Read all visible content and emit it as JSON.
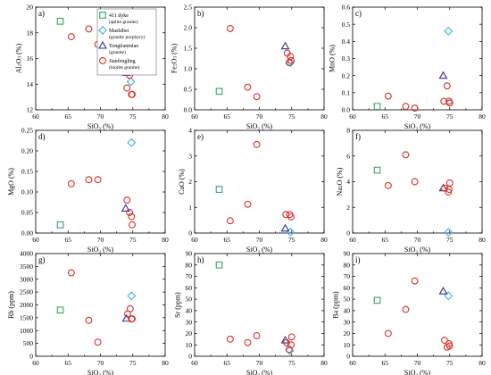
{
  "legend": [
    {
      "marker": "square",
      "color": "#3f9f6a",
      "name": "411 dyke",
      "desc": "(aplite granite)"
    },
    {
      "marker": "diamond",
      "color": "#3fb3e0",
      "name": "Mashibei",
      "desc": "(granite porphyry)"
    },
    {
      "marker": "triangle",
      "color": "#33338f",
      "name": "Tongtianmiao",
      "desc": "(granite)"
    },
    {
      "marker": "circle",
      "color": "#d9312b",
      "name": "Jianfengling",
      "desc": "(biotite granite)"
    }
  ],
  "chart_data": [
    {
      "type": "scatter",
      "panel": "a)",
      "xlabel": "SiO2 (%)",
      "ylabel": "Al2O3 (%)",
      "xlim": [
        60,
        80
      ],
      "ylim": [
        12,
        20
      ],
      "xticks": [
        "60",
        "65",
        "70",
        "75",
        "80"
      ],
      "yticks": [
        "12",
        "14",
        "16",
        "18",
        "20"
      ],
      "series": [
        {
          "name": "411 dyke",
          "points": [
            [
              63.8,
              18.9
            ]
          ]
        },
        {
          "name": "Mashibei",
          "points": [
            [
              74.7,
              14.2
            ]
          ]
        },
        {
          "name": "Tongtianmiao",
          "points": [
            [
              74.0,
              14.9
            ]
          ]
        },
        {
          "name": "Jianfengling",
          "points": [
            [
              65.5,
              17.7
            ],
            [
              68.2,
              18.3
            ],
            [
              69.6,
              17.1
            ],
            [
              74.1,
              13.7
            ],
            [
              74.5,
              14.7
            ],
            [
              74.8,
              13.2
            ],
            [
              74.9,
              13.2
            ]
          ]
        }
      ]
    },
    {
      "type": "scatter",
      "panel": "b)",
      "xlabel": "SiO2 (%)",
      "ylabel": "Fe2O3 (%)",
      "xlim": [
        60,
        80
      ],
      "ylim": [
        0,
        2.5
      ],
      "xticks": [
        "60",
        "65",
        "70",
        "75",
        "80"
      ],
      "yticks": [
        "0.0",
        "0.5",
        "1.0",
        "1.5",
        "2.0",
        "2.5"
      ],
      "series": [
        {
          "name": "411 dyke",
          "points": [
            [
              63.8,
              0.45
            ]
          ]
        },
        {
          "name": "Mashibei",
          "points": [
            [
              74.8,
              1.15
            ]
          ]
        },
        {
          "name": "Tongtianmiao",
          "points": [
            [
              74.0,
              1.55
            ]
          ]
        },
        {
          "name": "Jianfengling",
          "points": [
            [
              65.5,
              1.98
            ],
            [
              68.2,
              0.55
            ],
            [
              69.6,
              0.32
            ],
            [
              74.3,
              1.38
            ],
            [
              74.8,
              1.3
            ],
            [
              74.9,
              1.2
            ],
            [
              74.6,
              1.15
            ]
          ]
        }
      ]
    },
    {
      "type": "scatter",
      "panel": "c)",
      "xlabel": "SiO2 (%)",
      "ylabel": "MnO (%)",
      "xlim": [
        60,
        80
      ],
      "ylim": [
        0,
        0.6
      ],
      "xticks": [
        "60",
        "65",
        "70",
        "75",
        "80"
      ],
      "yticks": [
        "0.0",
        "0.1",
        "0.2",
        "0.3",
        "0.4",
        "0.5",
        "0.6"
      ],
      "series": [
        {
          "name": "411 dyke",
          "points": [
            [
              63.8,
              0.02
            ]
          ]
        },
        {
          "name": "Mashibei",
          "points": [
            [
              74.8,
              0.46
            ]
          ]
        },
        {
          "name": "Tongtianmiao",
          "points": [
            [
              74.0,
              0.2
            ]
          ]
        },
        {
          "name": "Jianfengling",
          "points": [
            [
              65.5,
              0.08
            ],
            [
              68.2,
              0.02
            ],
            [
              69.6,
              0.01
            ],
            [
              74.1,
              0.05
            ],
            [
              74.6,
              0.14
            ],
            [
              74.9,
              0.05
            ],
            [
              75.0,
              0.04
            ]
          ]
        }
      ]
    },
    {
      "type": "scatter",
      "panel": "d)",
      "xlabel": "SiO2 (%)",
      "ylabel": "MgO (%)",
      "xlim": [
        60,
        80
      ],
      "ylim": [
        0,
        0.25
      ],
      "xticks": [
        "60",
        "65",
        "70",
        "75",
        "80"
      ],
      "yticks": [
        "0.00",
        "0.05",
        "0.10",
        "0.15",
        "0.20",
        "0.25"
      ],
      "series": [
        {
          "name": "411 dyke",
          "points": [
            [
              63.8,
              0.02
            ]
          ]
        },
        {
          "name": "Mashibei",
          "points": [
            [
              74.8,
              0.22
            ]
          ]
        },
        {
          "name": "Tongtianmiao",
          "points": [
            [
              73.9,
              0.06
            ]
          ]
        },
        {
          "name": "Jianfengling",
          "points": [
            [
              65.5,
              0.12
            ],
            [
              68.2,
              0.13
            ],
            [
              69.6,
              0.13
            ],
            [
              74.1,
              0.08
            ],
            [
              74.5,
              0.05
            ],
            [
              74.8,
              0.04
            ],
            [
              74.9,
              0.02
            ]
          ]
        }
      ]
    },
    {
      "type": "scatter",
      "panel": "e)",
      "xlabel": "SiO2 (%)",
      "ylabel": "CaO (%)",
      "xlim": [
        60,
        80
      ],
      "ylim": [
        0,
        4
      ],
      "xticks": [
        "60",
        "65",
        "70",
        "75",
        "80"
      ],
      "yticks": [
        "0",
        "1",
        "2",
        "3",
        "4"
      ],
      "series": [
        {
          "name": "411 dyke",
          "points": [
            [
              63.8,
              1.7
            ]
          ]
        },
        {
          "name": "Mashibei",
          "points": [
            [
              74.8,
              0.03
            ]
          ]
        },
        {
          "name": "Tongtianmiao",
          "points": [
            [
              74.0,
              0.18
            ]
          ]
        },
        {
          "name": "Jianfengling",
          "points": [
            [
              65.5,
              0.48
            ],
            [
              68.2,
              1.12
            ],
            [
              69.6,
              3.45
            ],
            [
              74.1,
              0.72
            ],
            [
              74.7,
              0.72
            ],
            [
              74.9,
              0.63
            ]
          ]
        }
      ]
    },
    {
      "type": "scatter",
      "panel": "f)",
      "xlabel": "SiO2 (%)",
      "ylabel": "Na2O (%)",
      "xlim": [
        60,
        80
      ],
      "ylim": [
        0,
        8
      ],
      "xticks": [
        "60",
        "65",
        "70",
        "75",
        "80"
      ],
      "yticks": [
        "0",
        "2",
        "4",
        "6",
        "8"
      ],
      "series": [
        {
          "name": "411 dyke",
          "points": [
            [
              63.8,
              4.9
            ]
          ]
        },
        {
          "name": "Mashibei",
          "points": [
            [
              74.8,
              0.05
            ]
          ]
        },
        {
          "name": "Tongtianmiao",
          "points": [
            [
              74.0,
              3.5
            ]
          ]
        },
        {
          "name": "Jianfengling",
          "points": [
            [
              65.5,
              3.7
            ],
            [
              68.2,
              6.1
            ],
            [
              69.6,
              4.0
            ],
            [
              74.2,
              3.5
            ],
            [
              74.8,
              3.2
            ],
            [
              74.9,
              3.4
            ],
            [
              75.0,
              3.9
            ]
          ]
        }
      ]
    },
    {
      "type": "scatter",
      "panel": "g)",
      "xlabel": "SiO2 (%)",
      "ylabel": "Rb (ppm)",
      "xlim": [
        60,
        80
      ],
      "ylim": [
        0,
        4000
      ],
      "xticks": [
        "60",
        "65",
        "70",
        "75",
        "80"
      ],
      "yticks": [
        "0",
        "500",
        "1000",
        "1500",
        "2000",
        "2500",
        "3000",
        "3500",
        "4000"
      ],
      "series": [
        {
          "name": "411 dyke",
          "points": [
            [
              63.8,
              1800
            ]
          ]
        },
        {
          "name": "Mashibei",
          "points": [
            [
              74.8,
              2350
            ]
          ]
        },
        {
          "name": "Tongtianmiao",
          "points": [
            [
              74.0,
              1470
            ]
          ]
        },
        {
          "name": "Jianfengling",
          "points": [
            [
              65.5,
              3250
            ],
            [
              68.2,
              1400
            ],
            [
              69.6,
              550
            ],
            [
              74.2,
              1650
            ],
            [
              74.6,
              1850
            ],
            [
              74.8,
              1450
            ],
            [
              74.9,
              1460
            ]
          ]
        }
      ]
    },
    {
      "type": "scatter",
      "panel": "h)",
      "xlabel": "SiO2 (%)",
      "ylabel": "Sr (ppm)",
      "xlim": [
        60,
        80
      ],
      "ylim": [
        0,
        90
      ],
      "xticks": [
        "60",
        "65",
        "70",
        "75",
        "80"
      ],
      "yticks": [
        "0",
        "10",
        "20",
        "30",
        "40",
        "50",
        "60",
        "70",
        "80",
        "90"
      ],
      "series": [
        {
          "name": "411 dyke",
          "points": [
            [
              63.8,
              80
            ]
          ]
        },
        {
          "name": "Mashibei",
          "points": [
            [
              74.7,
              5
            ]
          ]
        },
        {
          "name": "Tongtianmiao",
          "points": [
            [
              74.0,
              14
            ]
          ]
        },
        {
          "name": "Jianfengling",
          "points": [
            [
              65.5,
              15
            ],
            [
              68.2,
              12
            ],
            [
              69.6,
              18
            ],
            [
              74.2,
              12
            ],
            [
              74.6,
              6
            ],
            [
              74.9,
              10
            ],
            [
              75.0,
              17
            ]
          ]
        }
      ]
    },
    {
      "type": "scatter",
      "panel": "i)",
      "xlabel": "SiO2 (%)",
      "ylabel": "Ba (ppm)",
      "xlim": [
        60,
        80
      ],
      "ylim": [
        0,
        90
      ],
      "xticks": [
        "60",
        "65",
        "70",
        "75",
        "80"
      ],
      "yticks": [
        "0",
        "10",
        "20",
        "30",
        "40",
        "50",
        "60",
        "70",
        "80",
        "90"
      ],
      "series": [
        {
          "name": "411 dyke",
          "points": [
            [
              63.8,
              49
            ]
          ]
        },
        {
          "name": "Mashibei",
          "points": [
            [
              74.8,
              53
            ]
          ]
        },
        {
          "name": "Tongtianmiao",
          "points": [
            [
              74.0,
              57
            ]
          ]
        },
        {
          "name": "Jianfengling",
          "points": [
            [
              65.5,
              20
            ],
            [
              68.2,
              41
            ],
            [
              69.6,
              66
            ],
            [
              74.2,
              14
            ],
            [
              74.6,
              8
            ],
            [
              74.9,
              11
            ],
            [
              75.0,
              9
            ]
          ]
        }
      ]
    }
  ]
}
